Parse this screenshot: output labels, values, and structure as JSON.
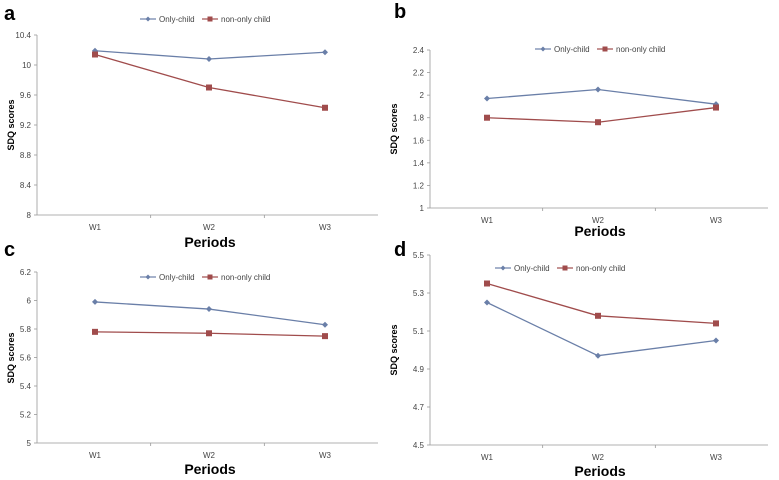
{
  "chart_data": [
    {
      "panel": "a",
      "type": "line",
      "categories": [
        "W1",
        "W2",
        "W3"
      ],
      "xlabel": "Periods",
      "ylabel": "SDQ scores",
      "ylim": [
        8,
        10.4
      ],
      "yticks": [
        "8",
        "8.4",
        "8.8",
        "9.2",
        "9.6",
        "10",
        "10.4"
      ],
      "legend_position": "top-center",
      "series": [
        {
          "name": "Only-child",
          "values": [
            10.19,
            10.08,
            10.17
          ],
          "color": "#6a7fa8"
        },
        {
          "name": "non-only child",
          "values": [
            10.14,
            9.7,
            9.43
          ],
          "color": "#a04c4c"
        }
      ]
    },
    {
      "panel": "b",
      "type": "line",
      "categories": [
        "W1",
        "W2",
        "W3"
      ],
      "xlabel": "Periods",
      "ylabel": "SDQ scores",
      "ylim": [
        1,
        2.4
      ],
      "yticks": [
        "1",
        "1.2",
        "1.4",
        "1.6",
        "1.8",
        "2",
        "2.2",
        "2.4"
      ],
      "legend_position": "top-center",
      "series": [
        {
          "name": "Only-child",
          "values": [
            1.97,
            2.05,
            1.92
          ],
          "color": "#6a7fa8"
        },
        {
          "name": "non-only child",
          "values": [
            1.8,
            1.76,
            1.89
          ],
          "color": "#a04c4c"
        }
      ]
    },
    {
      "panel": "c",
      "type": "line",
      "categories": [
        "W1",
        "W2",
        "W3"
      ],
      "xlabel": "Periods",
      "ylabel": "SDQ scores",
      "ylim": [
        5,
        6.2
      ],
      "yticks": [
        "5",
        "5.2",
        "5.4",
        "5.6",
        "5.8",
        "6",
        "6.2"
      ],
      "legend_position": "top-center",
      "series": [
        {
          "name": "Only-child",
          "values": [
            5.99,
            5.94,
            5.83
          ],
          "color": "#6a7fa8"
        },
        {
          "name": "non-only child",
          "values": [
            5.78,
            5.77,
            5.75
          ],
          "color": "#a04c4c"
        }
      ]
    },
    {
      "panel": "d",
      "type": "line",
      "categories": [
        "W1",
        "W2",
        "W3"
      ],
      "xlabel": "Periods",
      "ylabel": "SDQ scores",
      "ylim": [
        4.5,
        5.5
      ],
      "yticks": [
        "4.5",
        "4.7",
        "4.9",
        "5.1",
        "5.3",
        "5.5"
      ],
      "legend_position": "top-center",
      "series": [
        {
          "name": "Only-child",
          "values": [
            5.25,
            4.97,
            5.05
          ],
          "color": "#6a7fa8"
        },
        {
          "name": "non-only child",
          "values": [
            5.35,
            5.18,
            5.14
          ],
          "color": "#a04c4c"
        }
      ]
    }
  ]
}
